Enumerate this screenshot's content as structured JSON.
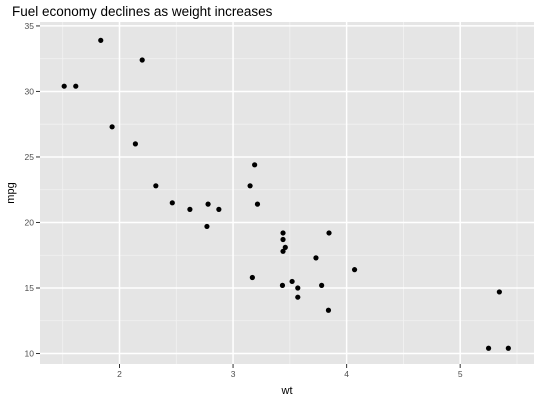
{
  "chart_data": {
    "type": "scatter",
    "title": "Fuel economy declines as weight increases",
    "xlabel": "wt",
    "ylabel": "mpg",
    "xlim": [
      1.3,
      5.65
    ],
    "ylim": [
      9.2,
      35.3
    ],
    "x_ticks": [
      2,
      3,
      4,
      5
    ],
    "y_ticks": [
      10,
      15,
      20,
      25,
      30,
      35
    ],
    "grid": true,
    "legend": "none",
    "points": [
      {
        "x": 2.62,
        "y": 21.0
      },
      {
        "x": 2.875,
        "y": 21.0
      },
      {
        "x": 2.32,
        "y": 22.8
      },
      {
        "x": 3.215,
        "y": 21.4
      },
      {
        "x": 3.44,
        "y": 18.7
      },
      {
        "x": 3.46,
        "y": 18.1
      },
      {
        "x": 3.57,
        "y": 14.3
      },
      {
        "x": 3.19,
        "y": 24.4
      },
      {
        "x": 3.15,
        "y": 22.8
      },
      {
        "x": 3.44,
        "y": 19.2
      },
      {
        "x": 3.44,
        "y": 17.8
      },
      {
        "x": 4.07,
        "y": 16.4
      },
      {
        "x": 3.73,
        "y": 17.3
      },
      {
        "x": 3.78,
        "y": 15.2
      },
      {
        "x": 5.25,
        "y": 10.4
      },
      {
        "x": 5.424,
        "y": 10.4
      },
      {
        "x": 5.345,
        "y": 14.7
      },
      {
        "x": 2.2,
        "y": 32.4
      },
      {
        "x": 1.615,
        "y": 30.4
      },
      {
        "x": 1.835,
        "y": 33.9
      },
      {
        "x": 2.465,
        "y": 21.5
      },
      {
        "x": 3.52,
        "y": 15.5
      },
      {
        "x": 3.435,
        "y": 15.2
      },
      {
        "x": 3.84,
        "y": 13.3
      },
      {
        "x": 3.845,
        "y": 19.2
      },
      {
        "x": 1.935,
        "y": 27.3
      },
      {
        "x": 2.14,
        "y": 26.0
      },
      {
        "x": 1.513,
        "y": 30.4
      },
      {
        "x": 3.17,
        "y": 15.8
      },
      {
        "x": 2.77,
        "y": 19.7
      },
      {
        "x": 3.57,
        "y": 15.0
      },
      {
        "x": 2.78,
        "y": 21.4
      }
    ]
  },
  "colors": {
    "panel_background": "#e5e5e5",
    "grid_major": "#ffffff",
    "grid_minor": "#f2f2f2",
    "point": "#000000",
    "text": "#000000",
    "tick_label": "#4d4d4d",
    "tick_mark": "#333333"
  }
}
